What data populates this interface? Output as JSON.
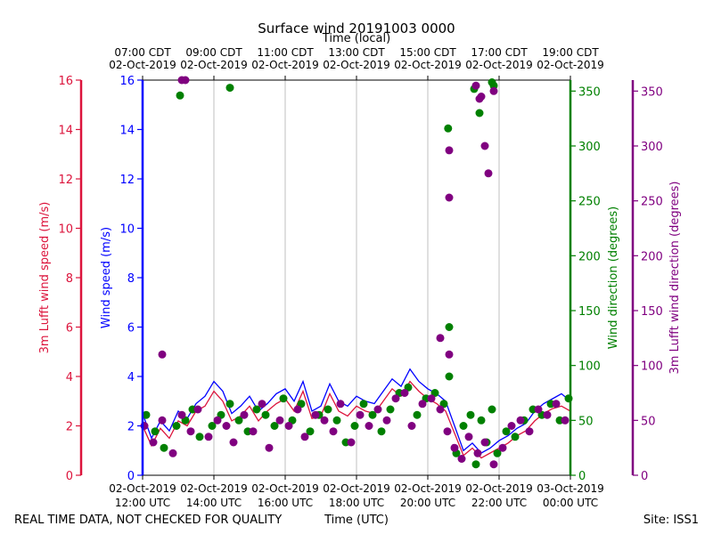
{
  "chart_data": {
    "type": "scatter",
    "title": "Surface wind 20191003 0000",
    "xlabel_bottom": "Time (UTC)",
    "xlabel_top": "Time (local)",
    "footer_left": "REAL TIME DATA, NOT CHECKED FOR QUALITY",
    "footer_right": "Site: ISS1",
    "x_range_hours_utc": [
      12,
      24
    ],
    "x_ticks_bottom": [
      {
        "hour": 12,
        "line1": "02-Oct-2019",
        "line2": "12:00 UTC"
      },
      {
        "hour": 14,
        "line1": "02-Oct-2019",
        "line2": "14:00 UTC"
      },
      {
        "hour": 16,
        "line1": "02-Oct-2019",
        "line2": "16:00 UTC"
      },
      {
        "hour": 18,
        "line1": "02-Oct-2019",
        "line2": "18:00 UTC"
      },
      {
        "hour": 20,
        "line1": "02-Oct-2019",
        "line2": "20:00 UTC"
      },
      {
        "hour": 22,
        "line1": "02-Oct-2019",
        "line2": "22:00 UTC"
      },
      {
        "hour": 24,
        "line1": "03-Oct-2019",
        "line2": "00:00 UTC"
      }
    ],
    "x_ticks_top": [
      {
        "hour": 12,
        "line1": "07:00 CDT",
        "line2": "02-Oct-2019"
      },
      {
        "hour": 14,
        "line1": "09:00 CDT",
        "line2": "02-Oct-2019"
      },
      {
        "hour": 16,
        "line1": "11:00 CDT",
        "line2": "02-Oct-2019"
      },
      {
        "hour": 18,
        "line1": "13:00 CDT",
        "line2": "02-Oct-2019"
      },
      {
        "hour": 20,
        "line1": "15:00 CDT",
        "line2": "02-Oct-2019"
      },
      {
        "hour": 22,
        "line1": "17:00 CDT",
        "line2": "02-Oct-2019"
      },
      {
        "hour": 24,
        "line1": "19:00 CDT",
        "line2": "02-Oct-2019"
      }
    ],
    "y_axes": [
      {
        "id": "lufft_speed",
        "label": "3m Lufft wind speed (m/s)",
        "color": "#dc143c",
        "side": "left-outer",
        "range": [
          0,
          16
        ],
        "ticks": [
          0,
          2,
          4,
          6,
          8,
          10,
          12,
          14,
          16
        ]
      },
      {
        "id": "speed",
        "label": "Wind speed (m/s)",
        "color": "#0000ff",
        "side": "left-inner",
        "range": [
          0,
          16
        ],
        "ticks": [
          0,
          2,
          4,
          6,
          8,
          10,
          12,
          14,
          16
        ]
      },
      {
        "id": "direction",
        "label": "Wind direction (degrees)",
        "color": "#008000",
        "side": "right-inner",
        "range": [
          0,
          360
        ],
        "ticks": [
          0,
          50,
          100,
          150,
          200,
          250,
          300,
          350
        ]
      },
      {
        "id": "lufft_direction",
        "label": "3m Lufft wind direction (degrees)",
        "color": "#800080",
        "side": "right-outer",
        "range": [
          0,
          360
        ],
        "ticks": [
          0,
          50,
          100,
          150,
          200,
          250,
          300,
          350
        ]
      }
    ],
    "series": [
      {
        "name": "Wind speed",
        "axis": "speed",
        "style": "line",
        "color": "#0000ff",
        "x": [
          12.0,
          12.25,
          12.5,
          12.75,
          13.0,
          13.25,
          13.5,
          13.75,
          14.0,
          14.25,
          14.5,
          14.75,
          15.0,
          15.25,
          15.5,
          15.75,
          16.0,
          16.25,
          16.5,
          16.75,
          17.0,
          17.25,
          17.5,
          17.75,
          18.0,
          18.25,
          18.5,
          18.75,
          19.0,
          19.25,
          19.5,
          19.75,
          20.0,
          20.25,
          20.5,
          20.75,
          21.0,
          21.25,
          21.5,
          21.75,
          22.0,
          22.25,
          22.5,
          22.75,
          23.0,
          23.25,
          23.5,
          23.75,
          24.0
        ],
        "y": [
          2.5,
          1.5,
          2.2,
          1.8,
          2.6,
          2.3,
          2.9,
          3.2,
          3.8,
          3.4,
          2.5,
          2.8,
          3.2,
          2.6,
          2.9,
          3.3,
          3.5,
          3.0,
          3.8,
          2.6,
          2.8,
          3.7,
          3.0,
          2.8,
          3.2,
          3.0,
          2.9,
          3.4,
          3.9,
          3.6,
          4.3,
          3.8,
          3.5,
          3.3,
          3.0,
          2.0,
          1.0,
          1.3,
          0.9,
          1.1,
          1.4,
          1.6,
          1.9,
          2.1,
          2.6,
          2.9,
          3.1,
          3.3,
          3.0
        ]
      },
      {
        "name": "3m Lufft wind speed",
        "axis": "lufft_speed",
        "style": "line",
        "color": "#dc143c",
        "x": [
          12.0,
          12.25,
          12.5,
          12.75,
          13.0,
          13.25,
          13.5,
          13.75,
          14.0,
          14.25,
          14.5,
          14.75,
          15.0,
          15.25,
          15.5,
          15.75,
          16.0,
          16.25,
          16.5,
          16.75,
          17.0,
          17.25,
          17.5,
          17.75,
          18.0,
          18.25,
          18.5,
          18.75,
          19.0,
          19.25,
          19.5,
          19.75,
          20.0,
          20.25,
          20.5,
          20.75,
          21.0,
          21.25,
          21.5,
          21.75,
          22.0,
          22.25,
          22.5,
          22.75,
          23.0,
          23.25,
          23.5,
          23.75,
          24.0
        ],
        "y": [
          2.0,
          1.2,
          1.9,
          1.5,
          2.2,
          2.0,
          2.6,
          2.8,
          3.4,
          3.0,
          2.2,
          2.4,
          2.8,
          2.2,
          2.6,
          2.9,
          3.1,
          2.6,
          3.4,
          2.3,
          2.4,
          3.3,
          2.6,
          2.4,
          2.8,
          2.6,
          2.5,
          3.0,
          3.5,
          3.2,
          3.8,
          3.4,
          3.1,
          2.9,
          2.6,
          1.7,
          0.8,
          1.1,
          0.7,
          0.9,
          1.1,
          1.3,
          1.6,
          1.8,
          2.2,
          2.5,
          2.7,
          2.8,
          2.6
        ]
      },
      {
        "name": "Wind direction",
        "axis": "direction",
        "style": "points",
        "color": "#008000",
        "x": [
          12.1,
          12.35,
          12.6,
          12.95,
          13.2,
          13.4,
          13.6,
          13.95,
          14.2,
          14.45,
          14.7,
          14.95,
          15.2,
          15.45,
          15.7,
          15.95,
          16.2,
          16.45,
          16.7,
          16.95,
          17.2,
          17.45,
          17.7,
          17.95,
          18.2,
          18.45,
          18.7,
          18.95,
          19.2,
          19.45,
          19.7,
          19.95,
          20.2,
          20.45,
          20.6,
          20.8,
          21.0,
          21.2,
          21.35,
          21.5,
          21.65,
          21.8,
          21.95,
          22.2,
          22.45,
          22.7,
          22.95,
          23.2,
          23.45,
          23.7,
          23.95,
          13.05,
          14.45,
          20.6,
          20.57,
          21.3,
          21.45,
          21.8,
          21.85
        ],
        "y": [
          55,
          40,
          25,
          45,
          50,
          60,
          35,
          45,
          55,
          65,
          50,
          40,
          60,
          55,
          45,
          70,
          50,
          65,
          40,
          55,
          60,
          50,
          30,
          45,
          65,
          55,
          40,
          60,
          75,
          80,
          55,
          70,
          75,
          65,
          90,
          20,
          45,
          55,
          10,
          50,
          30,
          60,
          20,
          40,
          35,
          50,
          60,
          55,
          65,
          50,
          70,
          346,
          353,
          135,
          316,
          352,
          330,
          358,
          355
        ]
      },
      {
        "name": "3m Lufft wind direction",
        "axis": "lufft_direction",
        "style": "points",
        "color": "#800080",
        "x": [
          12.05,
          12.3,
          12.55,
          12.85,
          13.1,
          13.35,
          13.55,
          13.85,
          14.1,
          14.35,
          14.55,
          14.85,
          15.1,
          15.35,
          15.55,
          15.85,
          16.1,
          16.35,
          16.55,
          16.85,
          17.1,
          17.35,
          17.55,
          17.85,
          18.1,
          18.35,
          18.6,
          18.85,
          19.1,
          19.35,
          19.55,
          19.85,
          20.1,
          20.35,
          20.55,
          20.75,
          20.95,
          21.15,
          21.4,
          21.6,
          21.85,
          22.1,
          22.35,
          22.6,
          22.85,
          23.1,
          23.35,
          23.6,
          23.85,
          12.55,
          13.1,
          13.2,
          20.6,
          20.6,
          21.35,
          21.45,
          21.5,
          21.6,
          21.7,
          21.85,
          20.35,
          20.6
        ],
        "y": [
          45,
          30,
          50,
          20,
          55,
          40,
          60,
          35,
          50,
          45,
          30,
          55,
          40,
          65,
          25,
          50,
          45,
          60,
          35,
          55,
          50,
          40,
          65,
          30,
          55,
          45,
          60,
          50,
          70,
          75,
          45,
          65,
          70,
          60,
          40,
          25,
          15,
          35,
          20,
          30,
          10,
          25,
          45,
          50,
          40,
          60,
          55,
          65,
          50,
          110,
          360,
          360,
          296,
          253,
          355,
          343,
          345,
          300,
          275,
          350,
          125,
          110
        ]
      }
    ]
  }
}
